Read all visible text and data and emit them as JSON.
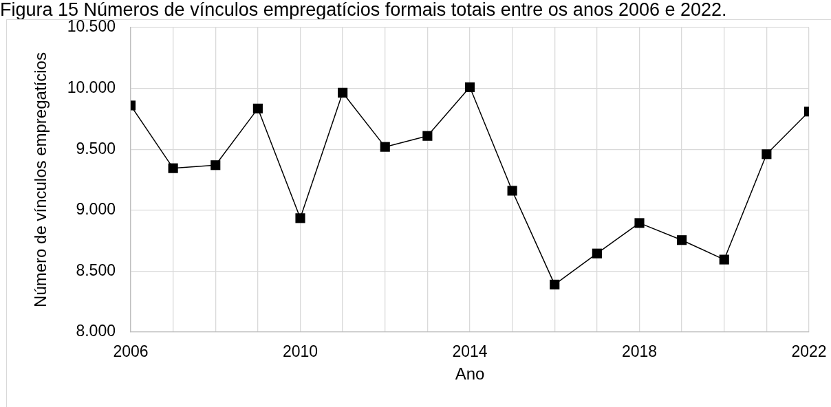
{
  "chart_data": {
    "type": "line",
    "title": "Figura 15 Números de vínculos empregatícios formais totais entre os anos 2006 e 2022.",
    "xlabel": "Ano",
    "ylabel": "Número de vínculos empregatícios",
    "x": [
      2006,
      2007,
      2008,
      2009,
      2010,
      2011,
      2012,
      2013,
      2014,
      2015,
      2016,
      2017,
      2018,
      2019,
      2020,
      2021,
      2022
    ],
    "series": [
      {
        "color": "#000000",
        "values": [
          9860,
          9345,
          9370,
          9835,
          8935,
          9965,
          9520,
          9610,
          10010,
          9160,
          8390,
          8645,
          8895,
          8755,
          8595,
          9460,
          9810
        ]
      }
    ],
    "xlim": [
      2006,
      2022
    ],
    "xticks": [
      2006,
      {
        "value": 2007,
        "label": null
      },
      {
        "value": 2008,
        "label": null
      },
      {
        "value": 2009,
        "label": null
      },
      2010,
      {
        "value": 2011,
        "label": null
      },
      {
        "value": 2012,
        "label": null
      },
      {
        "value": 2013,
        "label": null
      },
      2014,
      {
        "value": 2015,
        "label": null
      },
      {
        "value": 2016,
        "label": null
      },
      {
        "value": 2017,
        "label": null
      },
      2018,
      {
        "value": 2019,
        "label": null
      },
      {
        "value": 2020,
        "label": null
      },
      {
        "value": 2021,
        "label": null
      },
      2022
    ],
    "ylim": [
      8000,
      10500
    ],
    "yticks": [
      {
        "value": 8000,
        "label": "8.000"
      },
      {
        "value": 8500,
        "label": "8.500"
      },
      {
        "value": 9000,
        "label": "9.000"
      },
      {
        "value": 9500,
        "label": "9.500"
      },
      {
        "value": 10000,
        "label": "10.000"
      },
      {
        "value": 10500,
        "label": "10.500"
      }
    ],
    "grid": true,
    "marker": "square",
    "line_style": "solid"
  }
}
